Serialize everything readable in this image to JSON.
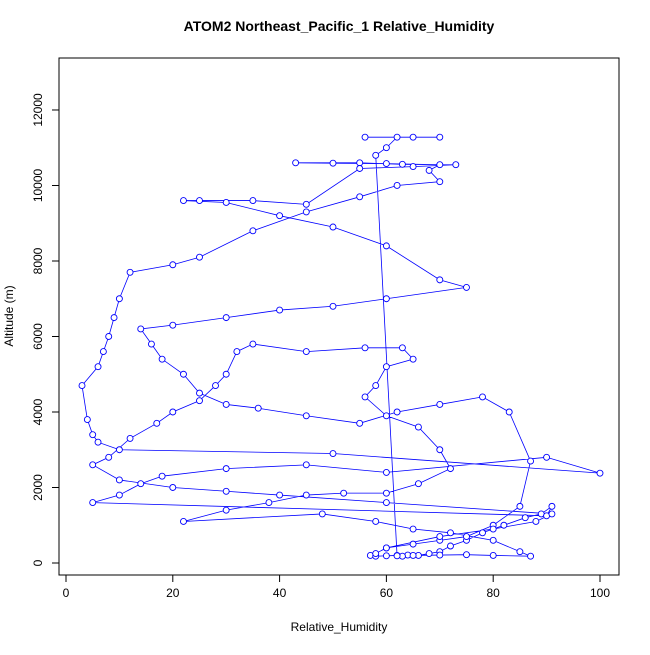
{
  "chart_data": {
    "type": "line",
    "title": "ATOM2 Northeast_Pacific_1 Relative_Humidity",
    "x_label": "Relative_Humidity",
    "y_label": "Altitude (m)",
    "color": "#0000ff",
    "markers": true,
    "xlim": [
      -1.31,
      103.56
    ],
    "ylim": [
      -318,
      13377
    ],
    "xticks": [
      0,
      20,
      40,
      60,
      80,
      100
    ],
    "yticks": [
      0,
      2000,
      4000,
      6000,
      8000,
      10000,
      12000
    ],
    "x": [
      57,
      58,
      60,
      62,
      64,
      66,
      68,
      70,
      72,
      75,
      78,
      82,
      86,
      89,
      91,
      90,
      5,
      10,
      14,
      18,
      30,
      45,
      60,
      90,
      100,
      50,
      10,
      6,
      5,
      4,
      3,
      6,
      7,
      8,
      9,
      10,
      12,
      20,
      25,
      35,
      45,
      55,
      62,
      70,
      68,
      70,
      60,
      50,
      43,
      55,
      63,
      73,
      65,
      55,
      45,
      35,
      25,
      22,
      30,
      40,
      50,
      60,
      70,
      75,
      60,
      50,
      40,
      30,
      20,
      14,
      16,
      18,
      22,
      25,
      30,
      36,
      45,
      55,
      62,
      70,
      78,
      83,
      87,
      85,
      80,
      75,
      70,
      65,
      60,
      58,
      60,
      70,
      80,
      88,
      91,
      60,
      40,
      30,
      20,
      10,
      5,
      8,
      12,
      17,
      20,
      25,
      28,
      30,
      32,
      35,
      45,
      56,
      63,
      65,
      60,
      58,
      56,
      60,
      66,
      70,
      72,
      66,
      60,
      52,
      45,
      38,
      30,
      22,
      48,
      58,
      65,
      72,
      80,
      85,
      87,
      80,
      75,
      70,
      65,
      63,
      62,
      58,
      60,
      62,
      56,
      65,
      70
    ],
    "values": [
      200,
      180,
      190,
      200,
      210,
      200,
      250,
      300,
      450,
      600,
      800,
      1000,
      1200,
      1300,
      1500,
      1250,
      1600,
      1800,
      2100,
      2300,
      2500,
      2600,
      2400,
      2800,
      2380,
      2900,
      3000,
      3200,
      3400,
      3800,
      4700,
      5200,
      5600,
      6000,
      6500,
      7000,
      7700,
      7900,
      8100,
      8800,
      9300,
      9700,
      10000,
      10100,
      10400,
      10550,
      10580,
      10590,
      10600,
      10600,
      10560,
      10550,
      10500,
      10450,
      9500,
      9600,
      9600,
      9600,
      9550,
      9200,
      8900,
      8400,
      7500,
      7300,
      7000,
      6800,
      6700,
      6500,
      6300,
      6200,
      5800,
      5400,
      5000,
      4500,
      4200,
      4100,
      3900,
      3700,
      4000,
      4200,
      4400,
      4000,
      2700,
      1500,
      1000,
      700,
      600,
      500,
      400,
      250,
      400,
      700,
      900,
      1100,
      1300,
      1600,
      1800,
      1900,
      2000,
      2200,
      2600,
      2800,
      3300,
      3700,
      4000,
      4300,
      4700,
      5000,
      5600,
      5800,
      5600,
      5700,
      5700,
      5400,
      5200,
      4700,
      4400,
      3900,
      3600,
      3000,
      2500,
      2100,
      1850,
      1850,
      1800,
      1600,
      1400,
      1100,
      1300,
      1100,
      900,
      800,
      600,
      300,
      180,
      200,
      220,
      210,
      200,
      180,
      190,
      10800,
      11000,
      11280,
      11280,
      11280,
      11280
    ]
  }
}
